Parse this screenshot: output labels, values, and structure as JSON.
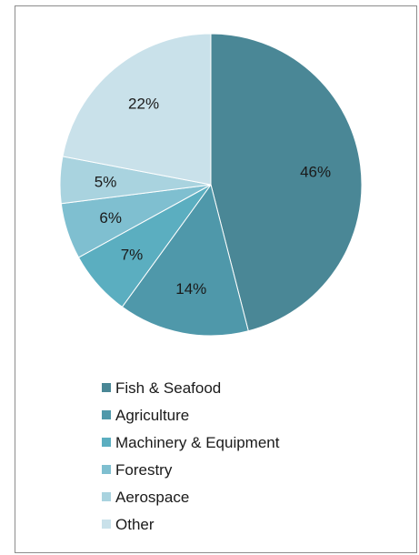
{
  "chart_data": {
    "type": "pie",
    "title": "",
    "start_angle_deg": 0,
    "direction": "clockwise",
    "legend_position": "bottom",
    "slices": [
      {
        "name": "Fish & Seafood",
        "value": 46,
        "label": "46%",
        "color": "#4a8796"
      },
      {
        "name": "Agriculture",
        "value": 14,
        "label": "14%",
        "color": "#4f98aa"
      },
      {
        "name": "Machinery & Equipment",
        "value": 7,
        "label": "7%",
        "color": "#5baec0"
      },
      {
        "name": "Forestry",
        "value": 6,
        "label": "6%",
        "color": "#7fbfd0"
      },
      {
        "name": "Aerospace",
        "value": 5,
        "label": "5%",
        "color": "#a9d3df"
      },
      {
        "name": "Other",
        "value": 22,
        "label": "22%",
        "color": "#c9e1ea"
      }
    ]
  }
}
